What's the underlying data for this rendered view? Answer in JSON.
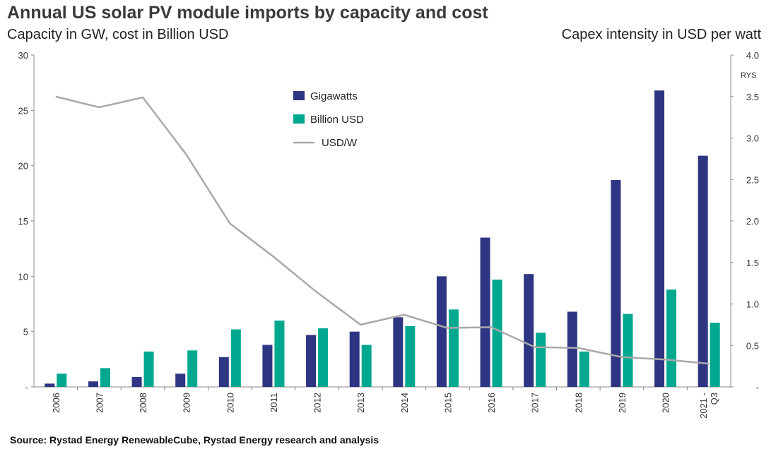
{
  "header": {
    "title": "Annual US solar PV module imports by capacity and cost",
    "subtitle_left": "Capacity in GW, cost in Billion USD",
    "subtitle_right": "Capex intensity in USD per watt"
  },
  "footer": {
    "source": "Source: Rystad Energy RenewableCube, Rystad Energy research and analysis"
  },
  "brand_mark": "RYS",
  "colors": {
    "gigawatts": "#2e3582",
    "billion_usd": "#00a88f",
    "usd_w": "#a9a9a9"
  },
  "chart_data": {
    "type": "bar",
    "title": "Annual US solar PV module imports by capacity and cost",
    "categories": [
      "2006",
      "2007",
      "2008",
      "2009",
      "2010",
      "2011",
      "2012",
      "2013",
      "2014",
      "2015",
      "2016",
      "2017",
      "2018",
      "2019",
      "2020",
      "2021 - Q3"
    ],
    "series": [
      {
        "name": "Gigawatts",
        "type": "bar",
        "axis": "left",
        "values": [
          0.3,
          0.5,
          0.9,
          1.2,
          2.7,
          3.8,
          4.7,
          5.0,
          6.3,
          10.0,
          13.5,
          10.2,
          6.8,
          18.7,
          26.8,
          20.9
        ]
      },
      {
        "name": "Billion USD",
        "type": "bar",
        "axis": "left",
        "values": [
          1.2,
          1.7,
          3.2,
          3.3,
          5.2,
          6.0,
          5.3,
          3.8,
          5.5,
          7.0,
          9.7,
          4.9,
          3.2,
          6.6,
          8.8,
          5.8
        ]
      },
      {
        "name": "USD/W",
        "type": "line",
        "axis": "right",
        "values": [
          3.5,
          3.37,
          3.49,
          2.8,
          1.97,
          1.57,
          1.14,
          0.75,
          0.87,
          0.71,
          0.72,
          0.48,
          0.47,
          0.36,
          0.33,
          0.28
        ]
      }
    ],
    "y_left": {
      "min": 0,
      "max": 30,
      "ticks": [
        "-",
        "5",
        "10",
        "15",
        "20",
        "25",
        "30"
      ]
    },
    "y_right": {
      "min": 0,
      "max": 4.0,
      "ticks": [
        "-",
        "0.5",
        "1.0",
        "1.5",
        "2.0",
        "2.5",
        "3.0",
        "3.5",
        "4.0"
      ]
    },
    "legend": {
      "placement": "top-center"
    },
    "grid": false
  }
}
